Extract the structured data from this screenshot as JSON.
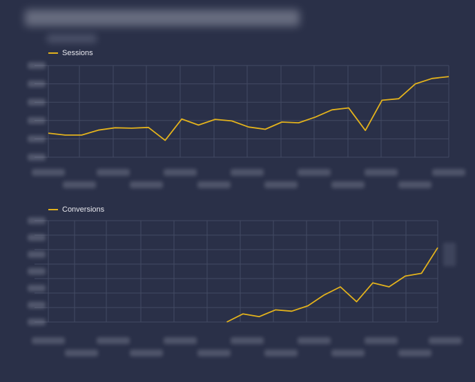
{
  "colors": {
    "background": "#2a3048",
    "line": "#e4b31c",
    "grid": "#434a63"
  },
  "chart_data": [
    {
      "type": "line",
      "legend_position": "top-left",
      "grid": true,
      "series": [
        {
          "name": "Sessions",
          "values": [
            6.3,
            5.8,
            5.8,
            7.1,
            7.7,
            7.6,
            7.8,
            4.4,
            10.0,
            8.4,
            9.9,
            9.5,
            7.9,
            7.3,
            9.2,
            9.0,
            10.5,
            12.4,
            12.9,
            7.0,
            14.9,
            15.3,
            19.2,
            20.6,
            21.1
          ]
        }
      ],
      "ylim": [
        0,
        24
      ]
    },
    {
      "type": "line",
      "legend_position": "top-left",
      "grid": true,
      "series": [
        {
          "name": "Conversions",
          "values": [
            null,
            null,
            null,
            null,
            null,
            null,
            null,
            null,
            null,
            null,
            null,
            0.0,
            0.6,
            0.4,
            0.9,
            0.8,
            1.2,
            2.0,
            2.6,
            1.5,
            2.9,
            2.6,
            3.4,
            3.6,
            5.5
          ]
        }
      ],
      "ylim": [
        0,
        7.5
      ]
    }
  ]
}
